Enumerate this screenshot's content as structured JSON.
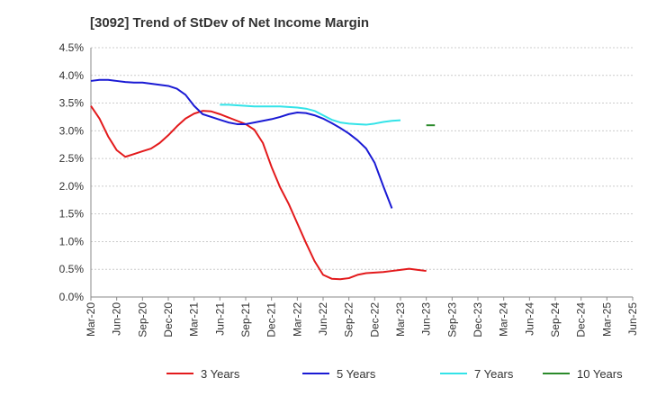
{
  "chart_data": {
    "type": "line",
    "title": "[3092]  Trend of StDev of Net Income Margin",
    "xlabel": "",
    "ylabel": "",
    "ylim": [
      0,
      4.5
    ],
    "y_ticks": [
      "0.0%",
      "0.5%",
      "1.0%",
      "1.5%",
      "2.0%",
      "2.5%",
      "3.0%",
      "3.5%",
      "4.0%",
      "4.5%"
    ],
    "y_tick_values": [
      0,
      0.5,
      1.0,
      1.5,
      2.0,
      2.5,
      3.0,
      3.5,
      4.0,
      4.5
    ],
    "x_ticks": [
      "Mar-20",
      "Jun-20",
      "Sep-20",
      "Dec-20",
      "Mar-21",
      "Jun-21",
      "Sep-21",
      "Dec-21",
      "Mar-22",
      "Jun-22",
      "Sep-22",
      "Dec-22",
      "Mar-23",
      "Jun-23",
      "Sep-23",
      "Dec-23",
      "Mar-24",
      "Jun-24",
      "Sep-24",
      "Dec-24",
      "Mar-25",
      "Jun-25"
    ],
    "grid": true,
    "legend_position": "bottom",
    "series": [
      {
        "name": "3 Years",
        "color": "#e31a1c",
        "start_index": 0,
        "values": [
          3.45,
          3.22,
          2.9,
          2.65,
          2.53,
          2.58,
          2.63,
          2.68,
          2.78,
          2.92,
          3.08,
          3.22,
          3.31,
          3.36,
          3.35,
          3.3,
          3.24,
          3.18,
          3.12,
          3.02,
          2.78,
          2.35,
          1.98,
          1.68,
          1.33,
          0.98,
          0.65,
          0.4,
          0.33,
          0.32,
          0.34,
          0.4,
          0.43,
          0.44,
          0.45,
          0.47,
          0.49,
          0.51,
          0.49,
          0.47
        ]
      },
      {
        "name": "5 Years",
        "color": "#1a1ad4",
        "start_index": 0,
        "values": [
          3.9,
          3.92,
          3.92,
          3.9,
          3.88,
          3.87,
          3.87,
          3.85,
          3.83,
          3.81,
          3.76,
          3.65,
          3.45,
          3.3,
          3.25,
          3.2,
          3.15,
          3.12,
          3.12,
          3.15,
          3.18,
          3.21,
          3.25,
          3.3,
          3.33,
          3.32,
          3.28,
          3.22,
          3.14,
          3.05,
          2.95,
          2.83,
          2.68,
          2.42,
          2.0,
          1.6
        ]
      },
      {
        "name": "7 Years",
        "color": "#33e3e8",
        "start_index": 15,
        "values": [
          3.47,
          3.47,
          3.46,
          3.45,
          3.44,
          3.44,
          3.44,
          3.44,
          3.43,
          3.42,
          3.4,
          3.36,
          3.28,
          3.2,
          3.15,
          3.13,
          3.12,
          3.11,
          3.13,
          3.16,
          3.18,
          3.19
        ]
      },
      {
        "name": "10 Years",
        "color": "#2b8a2b",
        "start_index": 39,
        "values": [
          3.1,
          3.1
        ]
      }
    ]
  }
}
